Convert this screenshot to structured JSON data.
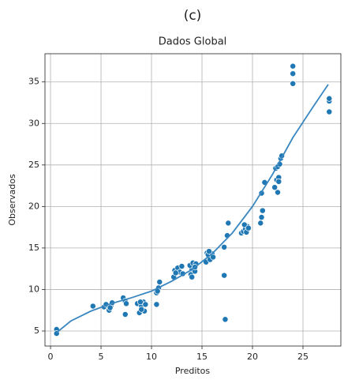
{
  "chart_data": {
    "type": "scatter",
    "title": "(c)",
    "subtitle": "Dados Global",
    "x_label": "Preditos",
    "y_label": "Observados",
    "xlim": [
      -0.55,
      28.75
    ],
    "ylim": [
      3.19,
      38.4
    ],
    "xticks": [
      0,
      5,
      10,
      15,
      20,
      25
    ],
    "yticks": [
      5,
      10,
      15,
      20,
      25,
      30,
      35
    ],
    "grid": true,
    "color": "#1f77b4",
    "x": [
      0.6,
      0.6,
      4.2,
      5.3,
      5.5,
      5.8,
      6.0,
      6.1,
      5.9,
      7.2,
      7.4,
      7.5,
      7.4,
      8.6,
      8.8,
      9.0,
      9.2,
      9.3,
      9.0,
      9.4,
      8.9,
      10.5,
      10.5,
      10.7,
      10.8,
      10.6,
      12.2,
      12.3,
      12.6,
      12.8,
      13.0,
      12.4,
      13.1,
      13.9,
      14.0,
      14.2,
      14.0,
      14.3,
      13.8,
      14.1,
      14.4,
      14.3,
      15.4,
      15.5,
      15.6,
      15.8,
      16.0,
      16.1,
      15.7,
      17.2,
      17.2,
      17.5,
      17.6,
      17.3,
      18.9,
      19.1,
      19.3,
      19.5,
      19.2,
      19.4,
      19.6,
      20.8,
      20.9,
      21.0,
      20.9,
      21.2,
      22.2,
      22.3,
      22.4,
      22.5,
      22.6,
      22.5,
      22.7,
      22.8,
      22.6,
      22.9,
      24.0,
      24.0,
      24.0,
      27.6,
      27.6,
      27.6
    ],
    "values": [
      5.2,
      4.7,
      8.0,
      7.9,
      8.2,
      7.5,
      8.1,
      8.4,
      7.8,
      9.0,
      8.6,
      8.3,
      7.0,
      8.3,
      7.2,
      8.0,
      8.5,
      7.4,
      7.6,
      8.2,
      8.5,
      8.2,
      9.6,
      10.2,
      10.9,
      9.8,
      11.5,
      12.3,
      12.6,
      12.1,
      12.8,
      12.0,
      11.9,
      11.8,
      12.5,
      13.0,
      11.5,
      12.2,
      12.9,
      13.2,
      13.1,
      12.7,
      13.3,
      14.4,
      14.2,
      13.6,
      14.3,
      13.9,
      14.6,
      11.7,
      15.1,
      16.5,
      18.0,
      6.4,
      16.8,
      17.0,
      17.3,
      17.6,
      17.8,
      16.9,
      17.4,
      18.0,
      18.7,
      19.5,
      21.6,
      22.9,
      22.3,
      24.6,
      23.2,
      21.7,
      23.5,
      24.8,
      25.1,
      25.8,
      23.0,
      26.1,
      34.8,
      36.0,
      36.9,
      31.4,
      32.7,
      33.0
    ],
    "fit": {
      "color": "#3a87c0",
      "x": [
        0.6,
        2,
        4,
        6,
        8,
        10,
        12,
        14,
        16,
        18,
        20,
        22,
        24,
        26,
        27.5
      ],
      "values": [
        4.8,
        6.2,
        7.4,
        8.3,
        9.0,
        9.8,
        11.0,
        12.4,
        14.3,
        16.8,
        20.0,
        23.9,
        28.3,
        32.0,
        34.7
      ]
    }
  }
}
